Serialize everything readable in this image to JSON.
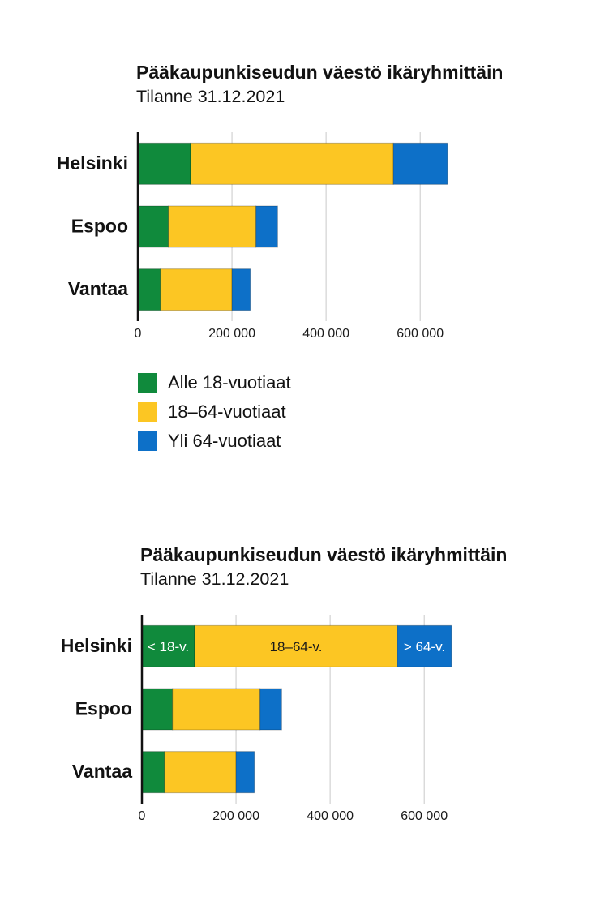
{
  "chart_data": [
    {
      "type": "bar",
      "orientation": "horizontal",
      "stacked": true,
      "title": "Pääkaupunkiseudun väestö ikäryhmittäin",
      "subtitle": "Tilanne 31.12.2021",
      "categories": [
        "Helsinki",
        "Espoo",
        "Vantaa"
      ],
      "series": [
        {
          "name": "Alle 18-vuotiaat",
          "color": "#108a3c",
          "values": [
            112000,
            65000,
            48000
          ]
        },
        {
          "name": "18–64-vuotiaat",
          "color": "#fcc623",
          "values": [
            431000,
            186000,
            152000
          ]
        },
        {
          "name": "Yli 64-vuotiaat",
          "color": "#0d70c8",
          "values": [
            115000,
            46000,
            39000
          ]
        }
      ],
      "xlim": [
        0,
        660000
      ],
      "xticks": [
        0,
        200000,
        400000,
        600000
      ],
      "xtick_labels": [
        "0",
        "200 000",
        "400 000",
        "600 000"
      ],
      "grid": true,
      "legend": "bottom-left"
    },
    {
      "type": "bar",
      "orientation": "horizontal",
      "stacked": true,
      "title": "Pääkaupunkiseudun väestö ikäryhmittäin",
      "subtitle": "Tilanne 31.12.2021",
      "categories": [
        "Helsinki",
        "Espoo",
        "Vantaa"
      ],
      "series": [
        {
          "name": "< 18-v.",
          "color": "#108a3c",
          "label_color": "#ffffff",
          "values": [
            112000,
            65000,
            48000
          ]
        },
        {
          "name": "18–64-v.",
          "color": "#fcc623",
          "label_color": "#1a1a1a",
          "values": [
            431000,
            186000,
            152000
          ]
        },
        {
          "name": "> 64-v.",
          "color": "#0d70c8",
          "label_color": "#ffffff",
          "values": [
            115000,
            46000,
            39000
          ]
        }
      ],
      "xlim": [
        0,
        660000
      ],
      "xticks": [
        0,
        200000,
        400000,
        600000
      ],
      "xtick_labels": [
        "0",
        "200 000",
        "400 000",
        "600 000"
      ],
      "grid": true,
      "legend": "inside-first-bar"
    }
  ]
}
